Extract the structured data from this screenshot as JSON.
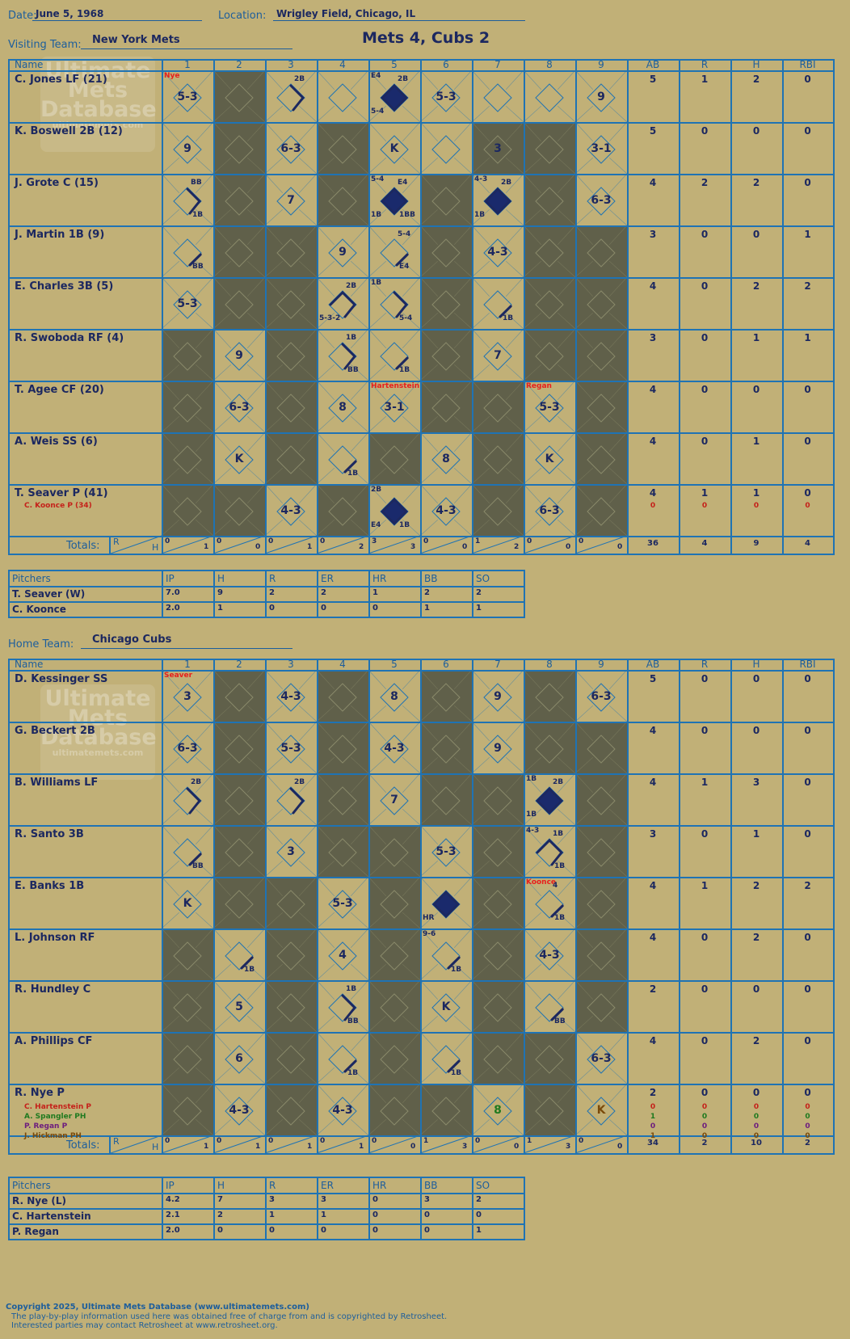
{
  "header": {
    "date_label": "Date:",
    "date": "June 5, 1968",
    "location_label": "Location:",
    "location": "Wrigley Field, Chicago, IL",
    "title": "Mets 4, Cubs 2"
  },
  "watermark": {
    "l1": "Ultimate",
    "l2": "Mets",
    "l3": "Database",
    "l4": "ultimatemets.com"
  },
  "visitors": {
    "team_label": "Visiting Team:",
    "team": "New York Mets",
    "columns": [
      "Name",
      "1",
      "2",
      "3",
      "4",
      "5",
      "6",
      "7",
      "8",
      "9",
      "AB",
      "R",
      "H",
      "RBI"
    ],
    "totals_label": "Totals:",
    "r_label": "R",
    "h_label": "H",
    "players": [
      {
        "name": "C. Jones LF (21)",
        "ab": "5",
        "r": "1",
        "h": "2",
        "rbi": "0"
      },
      {
        "name": "K. Boswell 2B (12)",
        "ab": "5",
        "r": "0",
        "h": "0",
        "rbi": "0"
      },
      {
        "name": "J. Grote C (15)",
        "ab": "4",
        "r": "2",
        "h": "2",
        "rbi": "0"
      },
      {
        "name": "J. Martin 1B (9)",
        "ab": "3",
        "r": "0",
        "h": "0",
        "rbi": "1"
      },
      {
        "name": "E. Charles 3B (5)",
        "ab": "4",
        "r": "0",
        "h": "2",
        "rbi": "2"
      },
      {
        "name": "R. Swoboda RF (4)",
        "ab": "3",
        "r": "0",
        "h": "1",
        "rbi": "1"
      },
      {
        "name": "T. Agee CF (20)",
        "ab": "4",
        "r": "0",
        "h": "0",
        "rbi": "0"
      },
      {
        "name": "A. Weis SS (6)",
        "ab": "4",
        "r": "0",
        "h": "1",
        "rbi": "0"
      },
      {
        "name": "T. Seaver P (41)",
        "ab": "4",
        "r": "1",
        "h": "1",
        "rbi": "0"
      }
    ],
    "subs": [
      {
        "row": 8,
        "name": "C. Koonce P (34)",
        "ab": "0",
        "r": "0",
        "h": "0",
        "rbi": "0",
        "cls": "dred"
      }
    ],
    "inning_totals": [
      {
        "r": "0",
        "h": "1"
      },
      {
        "r": "0",
        "h": "0"
      },
      {
        "r": "0",
        "h": "1"
      },
      {
        "r": "0",
        "h": "2"
      },
      {
        "r": "3",
        "h": "3"
      },
      {
        "r": "0",
        "h": "0"
      },
      {
        "r": "1",
        "h": "2"
      },
      {
        "r": "0",
        "h": "0"
      },
      {
        "r": "0",
        "h": "0"
      }
    ],
    "totals": {
      "ab": "36",
      "r": "4",
      "h": "9",
      "rbi": "4"
    },
    "pitchers_cols": [
      "Pitchers",
      "IP",
      "H",
      "R",
      "ER",
      "HR",
      "BB",
      "SO"
    ],
    "pitchers": [
      [
        "T. Seaver (W)",
        "7.0",
        "9",
        "2",
        "2",
        "1",
        "2",
        "2"
      ],
      [
        "C. Koonce",
        "2.0",
        "1",
        "0",
        "0",
        "0",
        "1",
        "1"
      ]
    ]
  },
  "home": {
    "team_label": "Home Team:",
    "team": "Chicago Cubs",
    "columns": [
      "Name",
      "1",
      "2",
      "3",
      "4",
      "5",
      "6",
      "7",
      "8",
      "9",
      "AB",
      "R",
      "H",
      "RBI"
    ],
    "totals_label": "Totals:",
    "r_label": "R",
    "h_label": "H",
    "players": [
      {
        "name": "D. Kessinger SS",
        "ab": "5",
        "r": "0",
        "h": "0",
        "rbi": "0"
      },
      {
        "name": "G. Beckert 2B",
        "ab": "4",
        "r": "0",
        "h": "0",
        "rbi": "0"
      },
      {
        "name": "B. Williams LF",
        "ab": "4",
        "r": "1",
        "h": "3",
        "rbi": "0"
      },
      {
        "name": "R. Santo 3B",
        "ab": "3",
        "r": "0",
        "h": "1",
        "rbi": "0"
      },
      {
        "name": "E. Banks 1B",
        "ab": "4",
        "r": "1",
        "h": "2",
        "rbi": "2"
      },
      {
        "name": "L. Johnson RF",
        "ab": "4",
        "r": "0",
        "h": "2",
        "rbi": "0"
      },
      {
        "name": "R. Hundley C",
        "ab": "2",
        "r": "0",
        "h": "0",
        "rbi": "0"
      },
      {
        "name": "A. Phillips CF",
        "ab": "4",
        "r": "0",
        "h": "2",
        "rbi": "0"
      },
      {
        "name": "R. Nye P",
        "ab": "2",
        "r": "0",
        "h": "0",
        "rbi": "0"
      }
    ],
    "subs": [
      {
        "row": 8,
        "name": "C. Hartenstein P",
        "ab": "0",
        "r": "0",
        "h": "0",
        "rbi": "0",
        "cls": "dred"
      },
      {
        "row": 8,
        "name": "A. Spangler PH",
        "ab": "1",
        "r": "0",
        "h": "0",
        "rbi": "0",
        "cls": "green"
      },
      {
        "row": 8,
        "name": "P. Regan P",
        "ab": "0",
        "r": "0",
        "h": "0",
        "rbi": "0",
        "cls": "purple"
      },
      {
        "row": 8,
        "name": "J. Hickman PH",
        "ab": "1",
        "r": "0",
        "h": "0",
        "rbi": "0",
        "cls": "brown"
      }
    ],
    "inning_totals": [
      {
        "r": "0",
        "h": "1"
      },
      {
        "r": "0",
        "h": "1"
      },
      {
        "r": "0",
        "h": "1"
      },
      {
        "r": "0",
        "h": "1"
      },
      {
        "r": "0",
        "h": "0"
      },
      {
        "r": "1",
        "h": "3"
      },
      {
        "r": "0",
        "h": "0"
      },
      {
        "r": "1",
        "h": "3"
      },
      {
        "r": "0",
        "h": "0"
      }
    ],
    "totals": {
      "ab": "34",
      "r": "2",
      "h": "10",
      "rbi": "2"
    },
    "pitchers_cols": [
      "Pitchers",
      "IP",
      "H",
      "R",
      "ER",
      "HR",
      "BB",
      "SO"
    ],
    "pitchers": [
      [
        "R. Nye (L)",
        "4.2",
        "7",
        "3",
        "3",
        "0",
        "3",
        "2"
      ],
      [
        "C. Hartenstein",
        "2.1",
        "2",
        "1",
        "1",
        "0",
        "0",
        "0"
      ],
      [
        "P. Regan",
        "2.0",
        "0",
        "0",
        "0",
        "0",
        "0",
        "1"
      ]
    ]
  },
  "footer": {
    "l1": "Copyright 2025, Ultimate Mets Database (www.ultimatemets.com)",
    "l2": "The play-by-play information used here was obtained free of charge from and is copyrighted by Retrosheet.",
    "l3": "Interested parties may contact Retrosheet at www.retrosheet.org."
  }
}
